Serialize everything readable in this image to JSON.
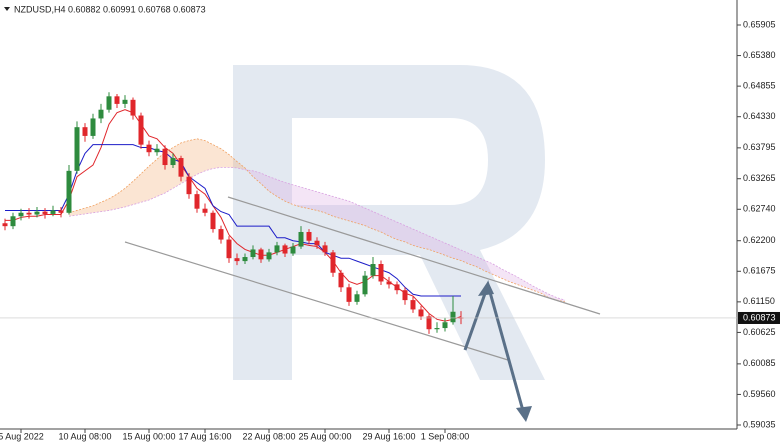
{
  "chart_data": {
    "type": "candlestick",
    "title": "NZDUSD,H4 0.60882 0.60991 0.60768 0.60873",
    "categories": [
      null,
      null,
      "5 Aug 2022",
      null,
      null,
      null,
      null,
      null,
      null,
      null,
      "10 Aug 08:00",
      null,
      null,
      null,
      null,
      null,
      null,
      null,
      "15 Aug 00:00",
      null,
      null,
      null,
      null,
      null,
      null,
      "17 Aug 16:00",
      null,
      null,
      null,
      null,
      null,
      null,
      null,
      "22 Aug 08:00",
      null,
      null,
      null,
      null,
      null,
      null,
      "25 Aug 00:00",
      null,
      null,
      null,
      null,
      null,
      null,
      null,
      "29 Aug 16:00",
      null,
      null,
      null,
      null,
      null,
      null,
      "1 Sep 08:00",
      null,
      null,
      null,
      null,
      null,
      null,
      null,
      null,
      null,
      null,
      null,
      null,
      null,
      null,
      null
    ],
    "ohlc": [
      [
        0.625,
        0.6258,
        0.6238,
        0.6245
      ],
      [
        0.6245,
        0.6268,
        0.624,
        0.6262
      ],
      [
        0.6262,
        0.6275,
        0.6255,
        0.6268
      ],
      [
        0.6268,
        0.6276,
        0.6258,
        0.6265
      ],
      [
        0.6265,
        0.6278,
        0.626,
        0.627
      ],
      [
        0.627,
        0.6276,
        0.6258,
        0.6266
      ],
      [
        0.6266,
        0.628,
        0.6262,
        0.6272
      ],
      [
        0.6272,
        0.6278,
        0.626,
        0.6268
      ],
      [
        0.6268,
        0.635,
        0.6265,
        0.634
      ],
      [
        0.634,
        0.6425,
        0.6335,
        0.6415
      ],
      [
        0.6415,
        0.6422,
        0.639,
        0.64
      ],
      [
        0.64,
        0.6438,
        0.6395,
        0.643
      ],
      [
        0.643,
        0.6455,
        0.6422,
        0.6445
      ],
      [
        0.6445,
        0.6475,
        0.644,
        0.6468
      ],
      [
        0.6468,
        0.6472,
        0.6448,
        0.6455
      ],
      [
        0.6455,
        0.647,
        0.6448,
        0.6462
      ],
      [
        0.6462,
        0.6466,
        0.6428,
        0.6435
      ],
      [
        0.6435,
        0.644,
        0.6378,
        0.6385
      ],
      [
        0.6385,
        0.6392,
        0.6365,
        0.6372
      ],
      [
        0.6372,
        0.6386,
        0.6366,
        0.6378
      ],
      [
        0.6378,
        0.6384,
        0.6342,
        0.635
      ],
      [
        0.635,
        0.637,
        0.6345,
        0.6362
      ],
      [
        0.6362,
        0.6366,
        0.6322,
        0.633
      ],
      [
        0.633,
        0.6336,
        0.6292,
        0.63
      ],
      [
        0.63,
        0.6306,
        0.6268,
        0.6275
      ],
      [
        0.6275,
        0.6284,
        0.6262,
        0.6268
      ],
      [
        0.6268,
        0.6272,
        0.6234,
        0.624
      ],
      [
        0.624,
        0.6246,
        0.6215,
        0.6222
      ],
      [
        0.6222,
        0.6228,
        0.6182,
        0.619
      ],
      [
        0.619,
        0.6198,
        0.6178,
        0.6185
      ],
      [
        0.6185,
        0.6198,
        0.618,
        0.6192
      ],
      [
        0.6192,
        0.6212,
        0.6188,
        0.6205
      ],
      [
        0.6205,
        0.6208,
        0.6182,
        0.6188
      ],
      [
        0.6188,
        0.6206,
        0.6184,
        0.62
      ],
      [
        0.62,
        0.6218,
        0.6195,
        0.6212
      ],
      [
        0.6212,
        0.6215,
        0.6192,
        0.6198
      ],
      [
        0.6198,
        0.6216,
        0.6194,
        0.621
      ],
      [
        0.621,
        0.6245,
        0.6206,
        0.6235
      ],
      [
        0.6235,
        0.624,
        0.6214,
        0.622
      ],
      [
        0.622,
        0.6226,
        0.6206,
        0.6212
      ],
      [
        0.6212,
        0.6218,
        0.6194,
        0.62
      ],
      [
        0.62,
        0.6204,
        0.6158,
        0.6165
      ],
      [
        0.6165,
        0.617,
        0.6132,
        0.614
      ],
      [
        0.614,
        0.6146,
        0.6108,
        0.6115
      ],
      [
        0.6115,
        0.6134,
        0.611,
        0.6128
      ],
      [
        0.6128,
        0.6168,
        0.6124,
        0.616
      ],
      [
        0.616,
        0.6192,
        0.6155,
        0.618
      ],
      [
        0.618,
        0.6186,
        0.6144,
        0.615
      ],
      [
        0.615,
        0.6158,
        0.6138,
        0.6145
      ],
      [
        0.6145,
        0.615,
        0.6128,
        0.6135
      ],
      [
        0.6135,
        0.614,
        0.611,
        0.6118
      ],
      [
        0.6118,
        0.6124,
        0.6096,
        0.6102
      ],
      [
        0.6102,
        0.6108,
        0.6084,
        0.609
      ],
      [
        0.609,
        0.6094,
        0.606,
        0.6068
      ],
      [
        0.6068,
        0.608,
        0.6062,
        0.607
      ],
      [
        0.607,
        0.6088,
        0.6064,
        0.608
      ],
      [
        0.608,
        0.6125,
        0.6076,
        0.6098
      ],
      [
        0.60882,
        0.60991,
        0.60768,
        0.60873
      ],
      null,
      null,
      null,
      null,
      null,
      null,
      null,
      null,
      null,
      null,
      null,
      null,
      null
    ],
    "up_color": "#2e8b3e",
    "down_color": "#e0262b",
    "series": [
      {
        "color": "#e0262b",
        "values": [
          0.6255,
          0.6255,
          0.626,
          0.6262,
          0.6262,
          0.6265,
          0.6265,
          0.6265,
          0.629,
          0.633,
          0.634,
          0.635,
          0.638,
          0.642,
          0.644,
          0.6445,
          0.644,
          0.642,
          0.64,
          0.6395,
          0.638,
          0.637,
          0.635,
          0.633,
          0.631,
          0.63,
          0.628,
          0.626,
          0.623,
          0.6215,
          0.6205,
          0.62,
          0.6195,
          0.6195,
          0.62,
          0.6205,
          0.621,
          0.6215,
          0.6212,
          0.621,
          0.62,
          0.6185,
          0.6165,
          0.615,
          0.6145,
          0.615,
          0.616,
          0.616,
          0.615,
          0.614,
          0.613,
          0.6125,
          0.611,
          0.6095,
          0.6085,
          0.6082,
          0.6085,
          0.609,
          null,
          null,
          null,
          null,
          null,
          null,
          null,
          null,
          null,
          null,
          null,
          null,
          null
        ]
      },
      {
        "color": "#1c1cc8",
        "values": [
          0.6272,
          0.6272,
          0.6272,
          0.6272,
          0.6272,
          0.6272,
          0.6272,
          0.6272,
          0.63,
          0.634,
          0.637,
          0.6385,
          0.6385,
          0.6385,
          0.6385,
          0.6385,
          0.6385,
          0.638,
          0.638,
          0.6375,
          0.6372,
          0.636,
          0.6355,
          0.633,
          0.632,
          0.631,
          0.628,
          0.627,
          0.6265,
          0.6245,
          0.6245,
          0.6245,
          0.6245,
          0.6245,
          0.6225,
          0.6225,
          0.622,
          0.6218,
          0.6215,
          0.6215,
          0.62,
          0.6195,
          0.619,
          0.619,
          0.6185,
          0.618,
          0.6175,
          0.617,
          0.6165,
          0.6155,
          0.614,
          0.6128,
          0.6125,
          0.6125,
          0.6125,
          0.6125,
          0.6125,
          0.6125,
          null,
          null,
          null,
          null,
          null,
          null,
          null,
          null,
          null,
          null,
          null,
          null,
          null
        ]
      },
      {
        "color": "#f0a060",
        "values": [
          null,
          null,
          null,
          null,
          null,
          null,
          null,
          null,
          0.6268,
          0.6272,
          0.6276,
          0.628,
          0.6286,
          0.6292,
          0.63,
          0.631,
          0.6322,
          0.6335,
          0.6348,
          0.636,
          0.6372,
          0.638,
          0.6388,
          0.6392,
          0.6395,
          0.6392,
          0.6385,
          0.6378,
          0.6368,
          0.6356,
          0.6345,
          0.633,
          0.6318,
          0.6305,
          0.6296,
          0.6288,
          0.6282,
          0.6278,
          0.6275,
          0.6272,
          0.6268,
          0.6262,
          0.6258,
          0.6254,
          0.625,
          0.6246,
          0.624,
          0.6235,
          0.6228,
          0.6222,
          0.6218,
          0.6212,
          0.6208,
          0.6205,
          0.62,
          0.6195,
          0.619,
          0.6186,
          0.618,
          0.6175,
          0.6168,
          0.6162,
          0.6156,
          0.615,
          0.6145,
          0.614,
          0.6135,
          0.613,
          0.6122,
          0.6118,
          0.6115
        ]
      },
      {
        "color": "#d8a0e0",
        "values": [
          null,
          null,
          null,
          null,
          null,
          null,
          null,
          null,
          0.6262,
          0.6264,
          0.6266,
          0.6268,
          0.627,
          0.6272,
          0.6275,
          0.6278,
          0.6282,
          0.6286,
          0.629,
          0.6296,
          0.6302,
          0.631,
          0.6318,
          0.6326,
          0.6334,
          0.634,
          0.6344,
          0.6346,
          0.6346,
          0.6345,
          0.6342,
          0.634,
          0.6336,
          0.633,
          0.6325,
          0.632,
          0.6316,
          0.6312,
          0.6308,
          0.6304,
          0.63,
          0.6296,
          0.6292,
          0.6288,
          0.6282,
          0.6276,
          0.627,
          0.6264,
          0.6258,
          0.6252,
          0.6246,
          0.624,
          0.6234,
          0.6228,
          0.6222,
          0.6216,
          0.621,
          0.6204,
          0.6198,
          0.6192,
          0.6186,
          0.618,
          0.6172,
          0.6165,
          0.6158,
          0.615,
          0.6142,
          0.6135,
          0.6128,
          0.6122,
          0.6118
        ]
      }
    ],
    "ylim": [
      0.59035,
      0.65905
    ],
    "yticks": [
      0.65905,
      {
        "value": 0.6538,
        "label": "0.65380"
      },
      0.64855,
      {
        "value": 0.6433,
        "label": "0.64330"
      },
      0.63795,
      0.63265,
      {
        "value": 0.6274,
        "label": "0.62740"
      },
      {
        "value": 0.622,
        "label": "0.62200"
      },
      0.61675,
      {
        "value": 0.6115,
        "label": "0.61150"
      },
      0.60625,
      0.60085,
      {
        "value": 0.5956,
        "label": "0.59560"
      },
      0.59035
    ],
    "last_price": 0.60873
  }
}
